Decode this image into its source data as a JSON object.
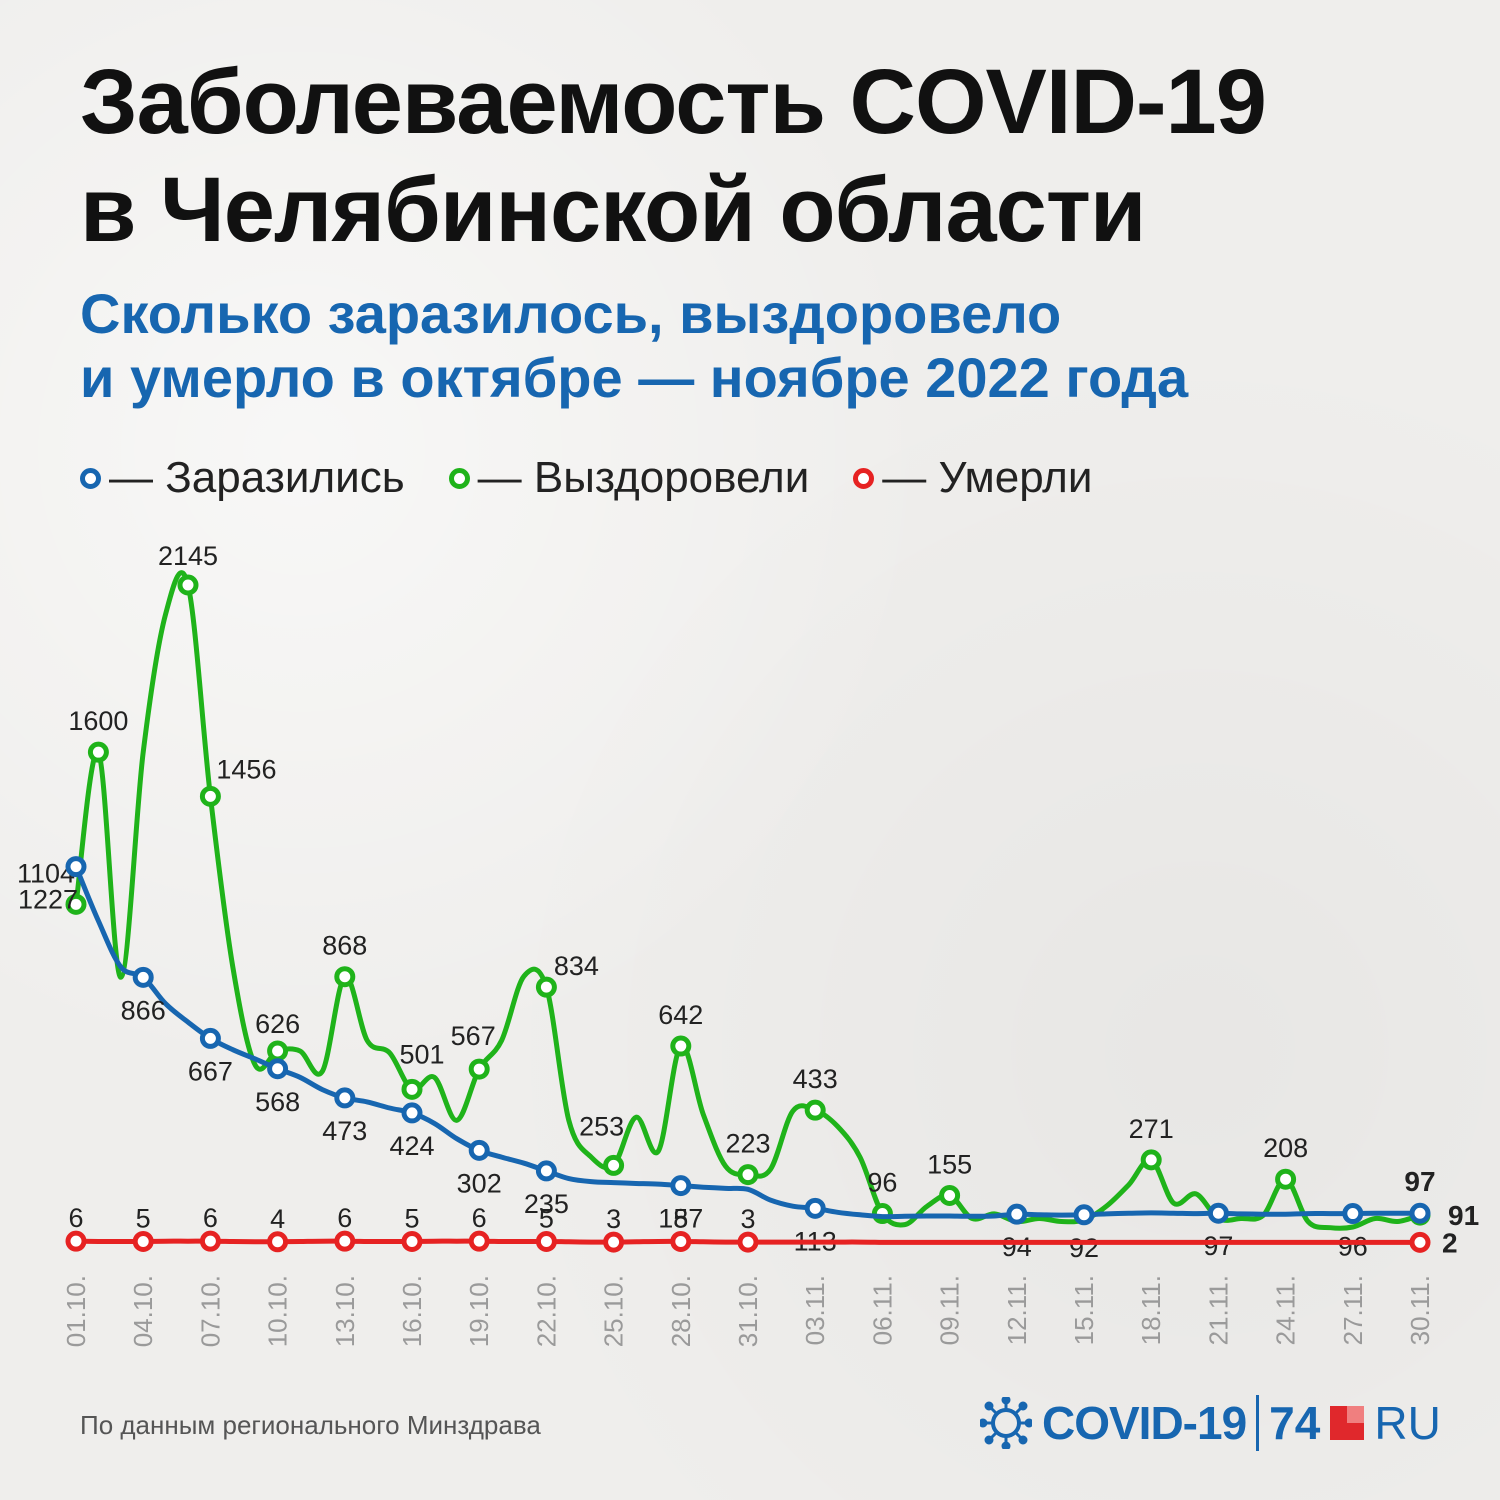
{
  "header": {
    "title_line1": "Заболеваемость COVID-19",
    "title_line2": "в Челябинской области",
    "subtitle_line1": "Сколько заразилось, выздоровело",
    "subtitle_line2": "и умерло в октябре — ноябре 2022 года"
  },
  "legend": [
    {
      "label": "— Заразились",
      "color": "#1766b0"
    },
    {
      "label": "— Выздоровели",
      "color": "#1fb31a"
    },
    {
      "label": "— Умерли",
      "color": "#e62222"
    }
  ],
  "footer": {
    "source": "По данным регионального Минздрава",
    "brand_covid": "COVID-19",
    "brand_num": "74",
    "brand_ru": "RU",
    "brand_icon": "virus-icon"
  },
  "chart_data": {
    "type": "line",
    "title": "Заболеваемость COVID-19 в Челябинской области",
    "x_tick_labels": [
      "01.10.",
      "04.10.",
      "07.10.",
      "10.10.",
      "13.10.",
      "16.10.",
      "19.10.",
      "22.10.",
      "25.10.",
      "28.10.",
      "31.10.",
      "03.11.",
      "06.11.",
      "09.11.",
      "12.11.",
      "15.11.",
      "18.11.",
      "21.11.",
      "24.11.",
      "27.11.",
      "30.11."
    ],
    "x": [
      "01.10.",
      "02.10.",
      "03.10.",
      "04.10.",
      "05.10.",
      "06.10.",
      "07.10.",
      "08.10.",
      "09.10.",
      "10.10.",
      "11.10.",
      "12.10.",
      "13.10.",
      "14.10.",
      "15.10.",
      "16.10.",
      "17.10.",
      "18.10.",
      "19.10.",
      "20.10.",
      "21.10.",
      "22.10.",
      "23.10.",
      "24.10.",
      "25.10.",
      "26.10.",
      "27.10.",
      "28.10.",
      "29.10.",
      "30.10.",
      "31.10.",
      "01.11.",
      "02.11.",
      "03.11.",
      "04.11.",
      "05.11.",
      "06.11.",
      "07.11.",
      "08.11.",
      "09.11.",
      "10.11.",
      "11.11.",
      "12.11.",
      "13.11.",
      "14.11.",
      "15.11.",
      "16.11.",
      "17.11.",
      "18.11.",
      "19.11.",
      "20.11.",
      "21.11.",
      "22.11.",
      "23.11.",
      "24.11.",
      "25.11.",
      "26.11.",
      "27.11.",
      "28.11.",
      "29.11.",
      "30.11."
    ],
    "ylim": [
      0,
      2300
    ],
    "grid": false,
    "legend_position": "top-left",
    "series": [
      {
        "name": "Заразились",
        "color": "#1766b0",
        "values": [
          1227,
          1050,
          900,
          866,
          780,
          720,
          667,
          630,
          600,
          568,
          540,
          500,
          473,
          460,
          440,
          424,
          390,
          340,
          302,
          280,
          260,
          235,
          210,
          200,
          197,
          194,
          192,
          187,
          182,
          178,
          175,
          140,
          120,
          113,
          100,
          92,
          86,
          87,
          88,
          88,
          87,
          88,
          94,
          92,
          91,
          92,
          95,
          97,
          98,
          97,
          96,
          97,
          95,
          94,
          94,
          96,
          96,
          96,
          97,
          97,
          97
        ],
        "labeled": [
          {
            "x": "01.10.",
            "value": 1227
          },
          {
            "x": "04.10.",
            "value": 866
          },
          {
            "x": "07.10.",
            "value": 667
          },
          {
            "x": "10.10.",
            "value": 568
          },
          {
            "x": "13.10.",
            "value": 473
          },
          {
            "x": "16.10.",
            "value": 424
          },
          {
            "x": "19.10.",
            "value": 302
          },
          {
            "x": "22.10.",
            "value": 235
          },
          {
            "x": "28.10.",
            "value": 187
          },
          {
            "x": "03.11.",
            "value": 113
          },
          {
            "x": "12.11.",
            "value": 94
          },
          {
            "x": "15.11.",
            "value": 92
          },
          {
            "x": "21.11.",
            "value": 97
          },
          {
            "x": "27.11.",
            "value": 96
          },
          {
            "x": "30.11.",
            "value": 97
          }
        ]
      },
      {
        "name": "Выздоровели",
        "color": "#1fb31a",
        "values": [
          1104,
          1600,
          866,
          1600,
          2050,
          2145,
          1456,
          900,
          580,
          626,
          626,
          560,
          868,
          660,
          620,
          501,
          540,
          400,
          567,
          660,
          870,
          834,
          400,
          280,
          253,
          410,
          300,
          642,
          420,
          250,
          223,
          240,
          430,
          433,
          380,
          280,
          96,
          60,
          120,
          155,
          80,
          95,
          70,
          80,
          70,
          75,
          120,
          190,
          271,
          130,
          160,
          80,
          80,
          90,
          208,
          70,
          50,
          52,
          80,
          70,
          91
        ],
        "labeled": [
          {
            "x": "01.10.",
            "value": 1104
          },
          {
            "x": "02.10.",
            "value": 1600
          },
          {
            "x": "06.10.",
            "value": 2145
          },
          {
            "x": "07.10.",
            "value": 1456
          },
          {
            "x": "10.10.",
            "value": 626
          },
          {
            "x": "13.10.",
            "value": 868
          },
          {
            "x": "16.10.",
            "value": 501
          },
          {
            "x": "19.10.",
            "value": 567
          },
          {
            "x": "22.10.",
            "value": 834
          },
          {
            "x": "25.10.",
            "value": 253
          },
          {
            "x": "28.10.",
            "value": 642
          },
          {
            "x": "31.10.",
            "value": 223
          },
          {
            "x": "03.11.",
            "value": 433
          },
          {
            "x": "06.11.",
            "value": 96
          },
          {
            "x": "09.11.",
            "value": 155
          },
          {
            "x": "18.11.",
            "value": 271
          },
          {
            "x": "24.11.",
            "value": 208
          },
          {
            "x": "30.11.",
            "value": 91
          }
        ]
      },
      {
        "name": "Умерли",
        "color": "#e62222",
        "values": [
          6,
          5,
          5,
          5,
          6,
          6,
          6,
          5,
          4,
          4,
          5,
          6,
          6,
          5,
          5,
          5,
          6,
          6,
          6,
          5,
          5,
          5,
          4,
          3,
          3,
          4,
          5,
          5,
          4,
          3,
          3,
          3,
          3,
          3,
          3,
          3,
          2,
          2,
          2,
          2,
          2,
          2,
          2,
          2,
          2,
          2,
          2,
          2,
          2,
          2,
          2,
          2,
          2,
          2,
          2,
          2,
          2,
          2,
          2,
          2,
          2
        ],
        "labeled": [
          {
            "x": "01.10.",
            "value": 6
          },
          {
            "x": "04.10.",
            "value": 5
          },
          {
            "x": "07.10.",
            "value": 6
          },
          {
            "x": "10.10.",
            "value": 4
          },
          {
            "x": "13.10.",
            "value": 6
          },
          {
            "x": "16.10.",
            "value": 5
          },
          {
            "x": "19.10.",
            "value": 6
          },
          {
            "x": "22.10.",
            "value": 5
          },
          {
            "x": "25.10.",
            "value": 3
          },
          {
            "x": "28.10.",
            "value": 5
          },
          {
            "x": "31.10.",
            "value": 3
          },
          {
            "x": "30.11.",
            "value": 2
          }
        ]
      }
    ]
  }
}
